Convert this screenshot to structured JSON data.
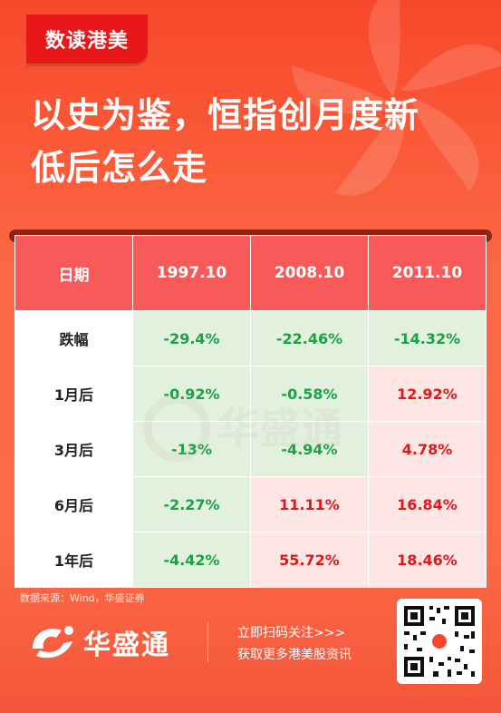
{
  "badge": "数读港美",
  "headline": [
    "以史为鉴，恒指创月度新",
    "低后怎么走"
  ],
  "table": {
    "header": [
      "日期",
      "1997.10",
      "2008.10",
      "2011.10"
    ],
    "rows": [
      {
        "label": "跌幅",
        "cells": [
          {
            "v": "-29.4%",
            "t": "neg"
          },
          {
            "v": "-22.46%",
            "t": "neg"
          },
          {
            "v": "-14.32%",
            "t": "neg"
          }
        ]
      },
      {
        "label": "1月后",
        "cells": [
          {
            "v": "-0.92%",
            "t": "neg"
          },
          {
            "v": "-0.58%",
            "t": "neg"
          },
          {
            "v": "12.92%",
            "t": "pos"
          }
        ]
      },
      {
        "label": "3月后",
        "cells": [
          {
            "v": "-13%",
            "t": "neg"
          },
          {
            "v": "-4.94%",
            "t": "neg"
          },
          {
            "v": "4.78%",
            "t": "pos"
          }
        ]
      },
      {
        "label": "6月后",
        "cells": [
          {
            "v": "-2.27%",
            "t": "neg"
          },
          {
            "v": "11.11%",
            "t": "pos"
          },
          {
            "v": "16.84%",
            "t": "pos"
          }
        ]
      },
      {
        "label": "1年后",
        "cells": [
          {
            "v": "-4.42%",
            "t": "neg"
          },
          {
            "v": "55.72%",
            "t": "pos"
          },
          {
            "v": "18.46%",
            "t": "pos"
          }
        ]
      }
    ]
  },
  "watermark": "华盛通",
  "source": "数据来源：Wind，华盛证券",
  "footer": {
    "brand": "华盛通",
    "cta_line1": "立即扫码关注>>>",
    "cta_line2": "获取更多港美股资讯"
  },
  "colors": {
    "negative": "#1aa243",
    "positive": "#e01818",
    "header": "#f85a5a"
  }
}
